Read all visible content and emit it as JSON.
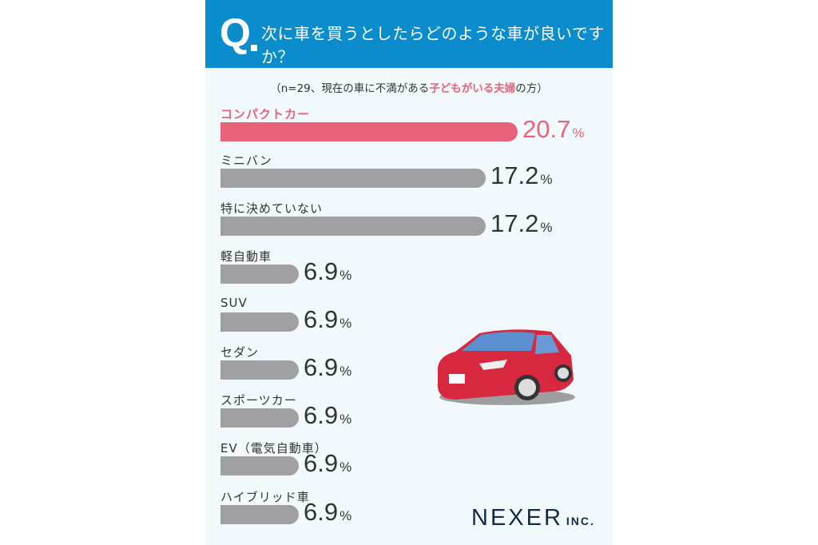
{
  "header": {
    "q": "Q",
    "title": "次に車を買うとしたらどのような車が良いですか？"
  },
  "subtitle": {
    "pre": "（n=29、現在の車に不満がある",
    "highlight": "子どもがいる夫婦",
    "post": "の方）"
  },
  "chart_data": {
    "type": "bar",
    "orientation": "horizontal",
    "title": "次に車を買うとしたらどのような車が良いですか？",
    "categories": [
      "コンパクトカー",
      "ミニバン",
      "特に決めていない",
      "軽自動車",
      "SUV",
      "セダン",
      "スポーツカー",
      "EV（電気自動車）",
      "ハイブリッド車"
    ],
    "values": [
      20.7,
      17.2,
      17.2,
      6.9,
      6.9,
      6.9,
      6.9,
      6.9,
      6.9
    ],
    "unit": "%",
    "highlight_index": 0,
    "colors": {
      "highlight": "#e8637a",
      "default": "#a0a0a3"
    }
  },
  "logo": {
    "main": "NEXER",
    "suffix": "INC."
  }
}
